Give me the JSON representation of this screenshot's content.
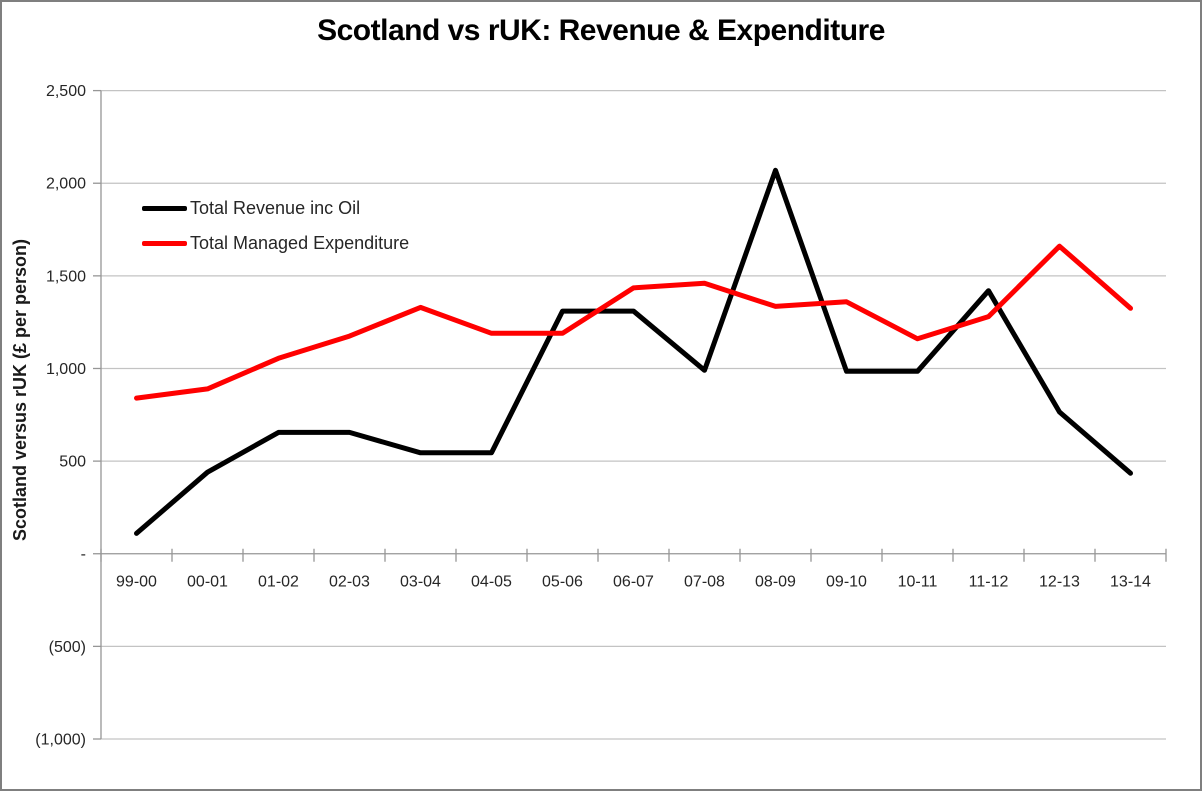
{
  "title": "Scotland vs rUK: Revenue & Expenditure",
  "y_axis_title": "Scotland versus rUK (£ per person)",
  "legend": {
    "items": [
      {
        "label": "Total Revenue inc Oil"
      },
      {
        "label": "Total Managed Expenditure"
      }
    ]
  },
  "colors": {
    "revenue_line": "#000000",
    "expenditure_line": "#ff0000",
    "gridline": "#c3c3c3",
    "axis": "#969696",
    "frame_border": "#7f7f7f",
    "text": "#262626",
    "title_text": "#000000"
  },
  "chart_data": {
    "type": "line",
    "title": "Scotland vs rUK: Revenue & Expenditure",
    "xlabel": "",
    "ylabel": "Scotland versus rUK (£ per person)",
    "categories": [
      "99-00",
      "00-01",
      "01-02",
      "02-03",
      "03-04",
      "04-05",
      "05-06",
      "06-07",
      "07-08",
      "08-09",
      "09-10",
      "10-11",
      "11-12",
      "12-13",
      "13-14"
    ],
    "series": [
      {
        "name": "Total Revenue inc Oil",
        "color": "#000000",
        "values": [
          110,
          440,
          655,
          655,
          545,
          545,
          1310,
          1310,
          990,
          2070,
          985,
          985,
          1420,
          765,
          435
        ]
      },
      {
        "name": "Total Managed Expenditure",
        "color": "#ff0000",
        "values": [
          840,
          890,
          1055,
          1175,
          1330,
          1190,
          1190,
          1435,
          1460,
          1335,
          1360,
          1160,
          1280,
          1660,
          1325
        ]
      }
    ],
    "ylim": [
      -1000,
      2500
    ],
    "y_tick_step": 500,
    "y_tick_labels_top_down": [
      "2,500",
      "2,000",
      "1,500",
      "1,000",
      "500",
      "-",
      "(500)",
      "(1,000)"
    ],
    "grid": true,
    "legend_position": "inside-top-left"
  }
}
